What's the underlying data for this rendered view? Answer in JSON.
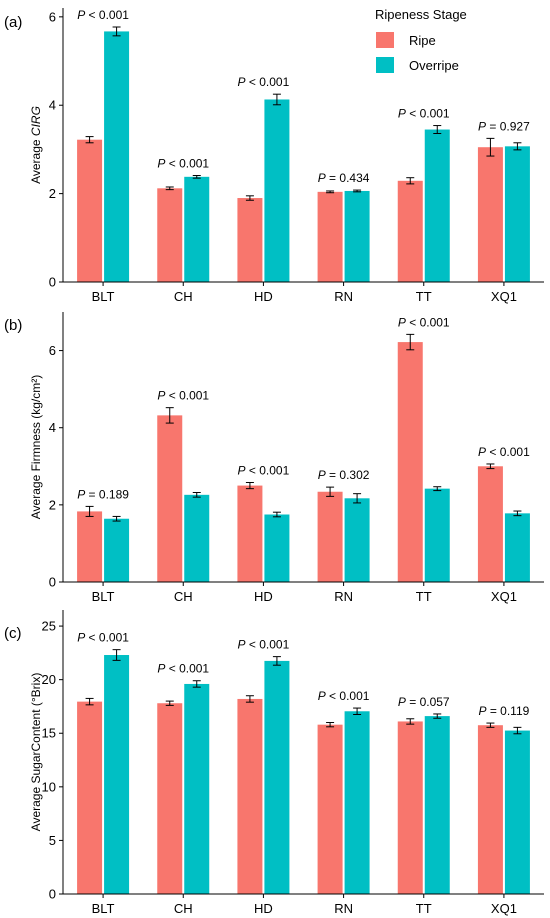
{
  "legend": {
    "title": "Ripeness Stage",
    "items": [
      {
        "label": "Ripe",
        "color": "#F8766D"
      },
      {
        "label": "Overripe",
        "color": "#00BFC4"
      }
    ],
    "placement": "top-right"
  },
  "chart_data": [
    {
      "type": "bar",
      "panel_label": "(a)",
      "ylabel_prefix": "Average ",
      "ylabel_italic": "CIRG",
      "categories": [
        "BLT",
        "CH",
        "HD",
        "RN",
        "TT",
        "XQ1"
      ],
      "ylim": [
        0,
        6.2
      ],
      "yticks": [
        0,
        2,
        4,
        6
      ],
      "series": [
        {
          "name": "Ripe",
          "values": [
            3.22,
            2.12,
            1.9,
            2.04,
            2.29,
            3.05
          ],
          "errors": [
            0.07,
            0.03,
            0.05,
            0.02,
            0.07,
            0.2
          ]
        },
        {
          "name": "Overripe",
          "values": [
            5.67,
            2.38,
            4.13,
            2.06,
            3.45,
            3.07
          ],
          "errors": [
            0.1,
            0.03,
            0.12,
            0.02,
            0.09,
            0.08
          ]
        }
      ],
      "p_values": [
        "P < 0.001",
        "P < 0.001",
        "P < 0.001",
        "P = 0.434",
        "P < 0.001",
        "P = 0.927"
      ]
    },
    {
      "type": "bar",
      "panel_label": "(b)",
      "ylabel_prefix": "Average Firmness (kg/cm²)",
      "ylabel_italic": "",
      "categories": [
        "BLT",
        "CH",
        "HD",
        "RN",
        "TT",
        "XQ1"
      ],
      "ylim": [
        0,
        7.0
      ],
      "yticks": [
        0,
        2,
        4,
        6
      ],
      "series": [
        {
          "name": "Ripe",
          "values": [
            1.83,
            4.32,
            2.5,
            2.34,
            6.22,
            3.0
          ],
          "errors": [
            0.13,
            0.2,
            0.08,
            0.12,
            0.2,
            0.06
          ]
        },
        {
          "name": "Overripe",
          "values": [
            1.64,
            2.26,
            1.75,
            2.17,
            2.42,
            1.78
          ],
          "errors": [
            0.06,
            0.06,
            0.06,
            0.12,
            0.05,
            0.06
          ]
        }
      ],
      "p_values": [
        "P = 0.189",
        "P < 0.001",
        "P < 0.001",
        "P = 0.302",
        "P < 0.001",
        "P < 0.001"
      ]
    },
    {
      "type": "bar",
      "panel_label": "(c)",
      "ylabel_prefix": "Average SugarContent (°Brix)",
      "ylabel_italic": "",
      "categories": [
        "BLT",
        "CH",
        "HD",
        "RN",
        "TT",
        "XQ1"
      ],
      "ylim": [
        0,
        26.5
      ],
      "yticks": [
        0,
        5,
        10,
        15,
        20,
        25
      ],
      "series": [
        {
          "name": "Ripe",
          "values": [
            17.95,
            17.8,
            18.2,
            15.8,
            16.1,
            15.75
          ],
          "errors": [
            0.3,
            0.2,
            0.3,
            0.2,
            0.25,
            0.2
          ]
        },
        {
          "name": "Overripe",
          "values": [
            22.3,
            19.6,
            21.75,
            17.05,
            16.6,
            15.25
          ],
          "errors": [
            0.5,
            0.3,
            0.4,
            0.3,
            0.2,
            0.3
          ]
        }
      ],
      "p_values": [
        "P < 0.001",
        "P < 0.001",
        "P < 0.001",
        "P < 0.001",
        "P = 0.057",
        "P = 0.119"
      ]
    }
  ]
}
